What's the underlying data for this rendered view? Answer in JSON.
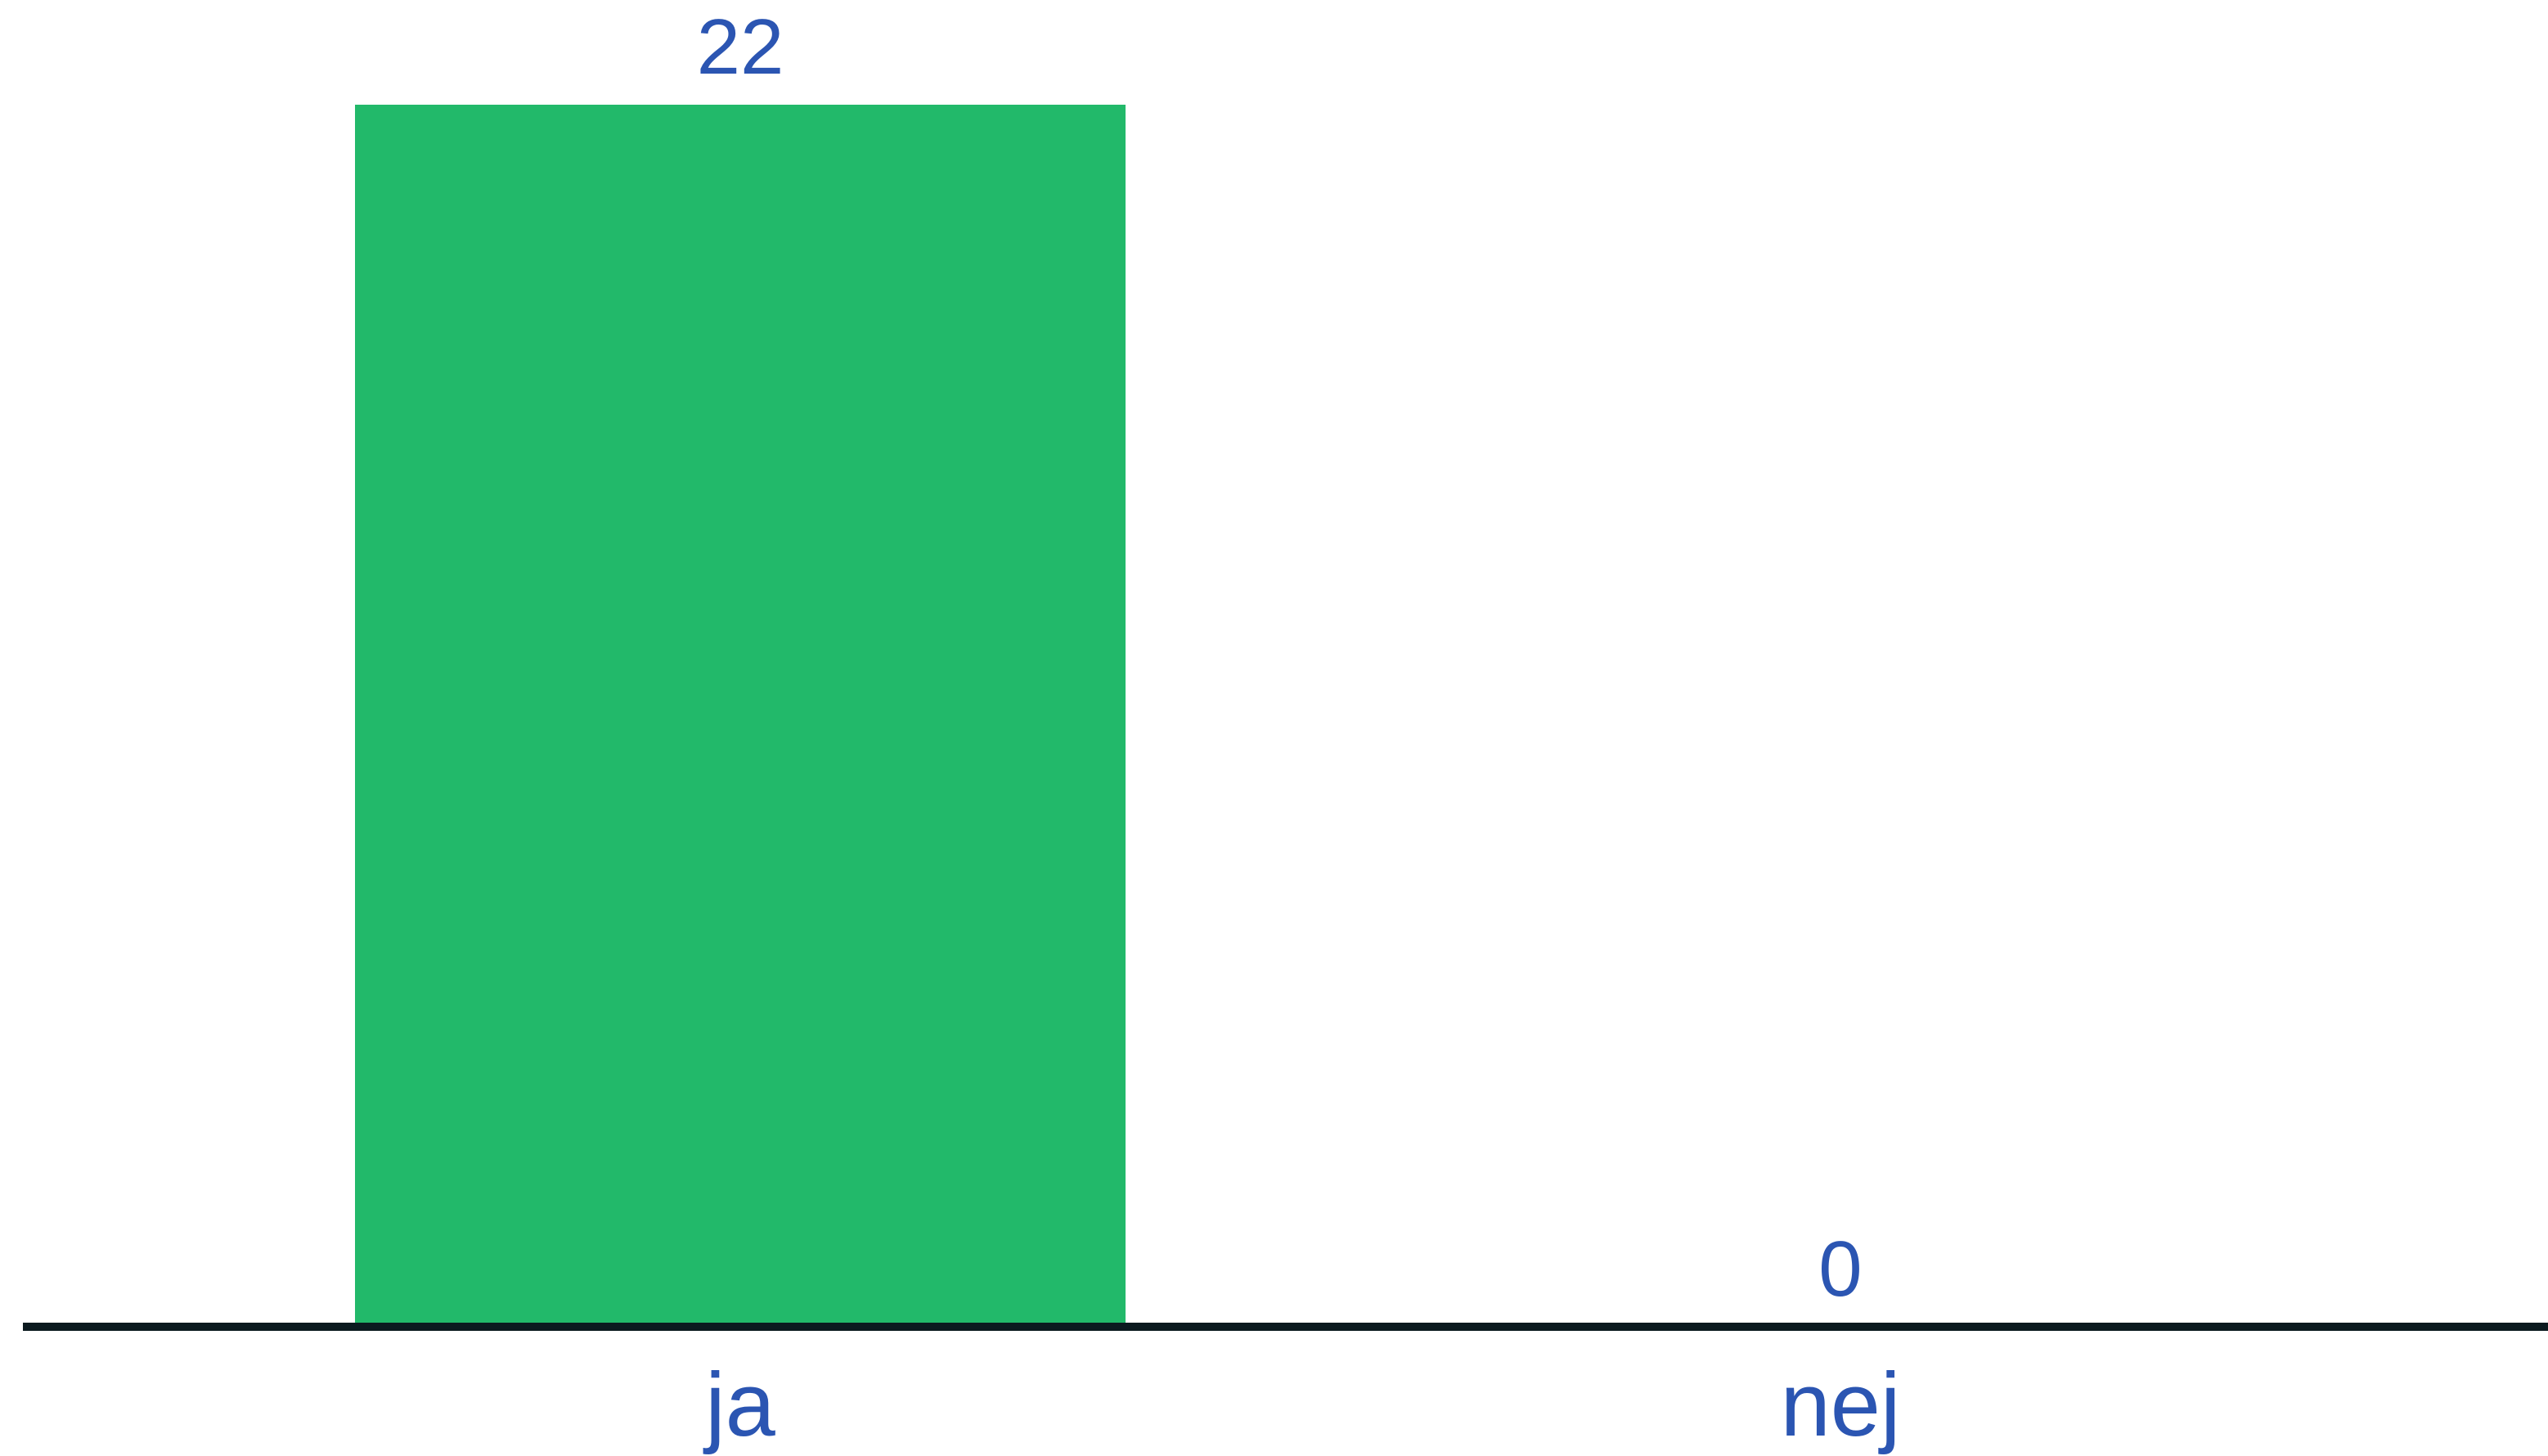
{
  "chart_data": {
    "type": "bar",
    "categories": [
      "ja",
      "nej"
    ],
    "values": [
      22,
      0
    ],
    "value_labels": [
      "22",
      "0"
    ],
    "title": "",
    "xlabel": "",
    "ylabel": "",
    "ylim": [
      0,
      22
    ],
    "grid": false,
    "legend": "none",
    "colors": {
      "bar": "#22b96a",
      "text": "#2b55b2",
      "axis": "#0b1a1f",
      "background": "#ffffff"
    }
  }
}
